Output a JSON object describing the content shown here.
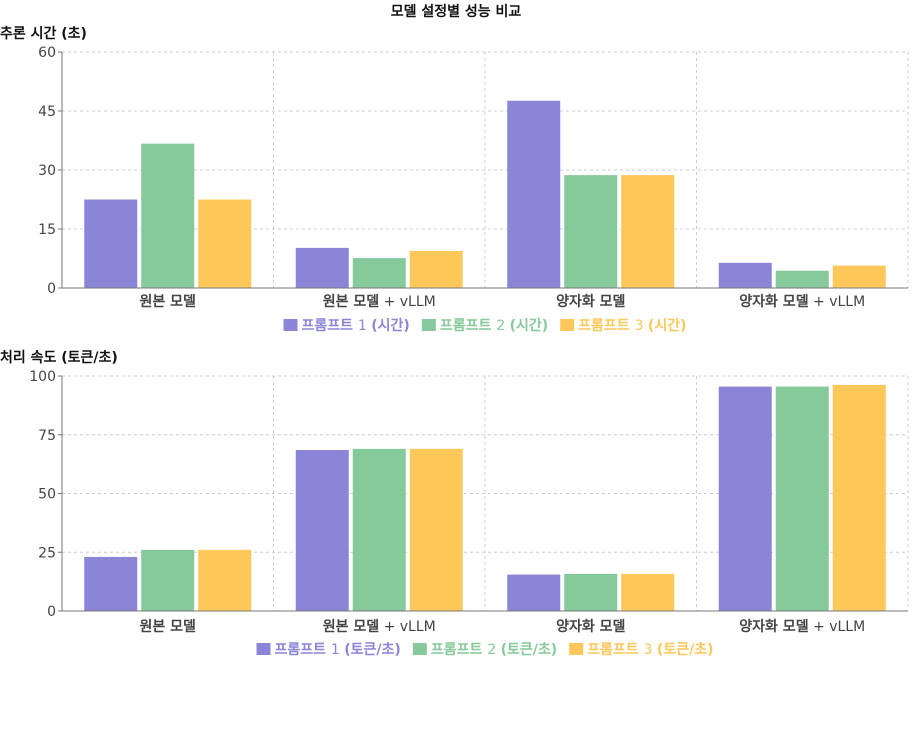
{
  "title": "모델 설정별 성능 비교",
  "colors": [
    "#8b85d8",
    "#86c99a",
    "#fdc75a"
  ],
  "chart_data": [
    {
      "type": "bar",
      "ylabel": "추론 시간 (초)",
      "categories": [
        "원본 모델",
        "원본 모델 + vLLM",
        "양자화 모델",
        "양자화 모델 + vLLM"
      ],
      "ylim": [
        0,
        60
      ],
      "yticks": [
        0,
        15,
        30,
        45,
        60
      ],
      "grid": true,
      "legend_position": "bottom",
      "series": [
        {
          "name": "프롬프트 1 (시간)",
          "values": [
            22.5,
            10.2,
            47.6,
            6.4
          ]
        },
        {
          "name": "프롬프트 2 (시간)",
          "values": [
            36.7,
            7.6,
            28.7,
            4.4
          ]
        },
        {
          "name": "프롬프트 3 (시간)",
          "values": [
            22.5,
            9.4,
            28.7,
            5.7
          ]
        }
      ]
    },
    {
      "type": "bar",
      "ylabel": "처리 속도 (토큰/초)",
      "categories": [
        "원본 모델",
        "원본 모델 + vLLM",
        "양자화 모델",
        "양자화 모델 + vLLM"
      ],
      "ylim": [
        0,
        100
      ],
      "yticks": [
        0,
        25,
        50,
        75,
        100
      ],
      "grid": true,
      "legend_position": "bottom",
      "series": [
        {
          "name": "프롬프트 1 (토큰/초)",
          "values": [
            23.0,
            68.5,
            15.5,
            95.5
          ]
        },
        {
          "name": "프롬프트 2 (토큰/초)",
          "values": [
            26.0,
            69.0,
            15.8,
            95.5
          ]
        },
        {
          "name": "프롬프트 3 (토큰/초)",
          "values": [
            26.0,
            69.0,
            15.8,
            96.2
          ]
        }
      ]
    }
  ]
}
